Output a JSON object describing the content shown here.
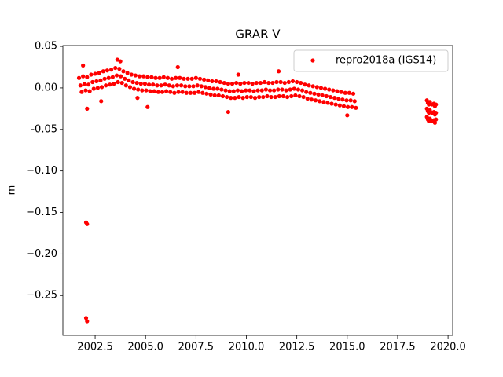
{
  "chart_data": {
    "type": "scatter",
    "title": "GRAR V",
    "ylabel": "m",
    "xlim": [
      2000.9,
      2020.23
    ],
    "ylim": [
      -0.298,
      0.051
    ],
    "xticks": [
      2002.5,
      {
        "value": 2005.0,
        "label": "2005.0"
      },
      2007.5,
      {
        "value": 2010.0,
        "label": "2010.0"
      },
      2012.5,
      {
        "value": 2015.0,
        "label": "2015.0"
      },
      2017.5,
      {
        "value": 2020.0,
        "label": "2020.0"
      }
    ],
    "yticks": [
      0.05,
      {
        "value": 0.0,
        "label": "0.00"
      },
      -0.05,
      {
        "value": -0.1,
        "label": "−0.10"
      },
      {
        "value": -0.15,
        "label": "−0.15"
      },
      {
        "value": -0.2,
        "label": "−0.20"
      },
      {
        "value": -0.25,
        "label": "−0.25"
      }
    ],
    "legend": "upper right",
    "series": [
      {
        "name": "repro2018a (IGS14)",
        "color": "#ff0000",
        "x": [
          2001.7,
          2001.77,
          2001.83,
          2001.9,
          2001.97,
          2002.03,
          2002.1,
          2002.17,
          2002.23,
          2002.3,
          2002.37,
          2002.43,
          2002.5,
          2002.57,
          2002.63,
          2002.7,
          2002.77,
          2002.83,
          2002.9,
          2002.97,
          2003.03,
          2003.1,
          2003.17,
          2003.23,
          2003.3,
          2003.37,
          2003.43,
          2003.5,
          2003.57,
          2003.63,
          2003.7,
          2003.77,
          2003.83,
          2003.9,
          2003.97,
          2004.03,
          2004.1,
          2004.17,
          2004.23,
          2004.3,
          2004.37,
          2004.43,
          2004.5,
          2004.57,
          2004.63,
          2004.7,
          2004.77,
          2004.83,
          2004.9,
          2004.97,
          2005.03,
          2005.1,
          2005.17,
          2005.23,
          2005.3,
          2005.37,
          2005.43,
          2005.5,
          2005.57,
          2005.63,
          2005.7,
          2005.77,
          2005.83,
          2005.9,
          2005.97,
          2006.03,
          2006.1,
          2006.17,
          2006.23,
          2006.3,
          2006.37,
          2006.43,
          2006.5,
          2006.57,
          2006.63,
          2006.7,
          2006.77,
          2006.83,
          2006.9,
          2006.97,
          2007.03,
          2007.1,
          2007.17,
          2007.23,
          2007.3,
          2007.37,
          2007.43,
          2007.5,
          2007.57,
          2007.63,
          2007.7,
          2007.77,
          2007.83,
          2007.9,
          2007.97,
          2008.03,
          2008.1,
          2008.17,
          2008.23,
          2008.3,
          2008.37,
          2008.43,
          2008.5,
          2008.57,
          2008.63,
          2008.7,
          2008.77,
          2008.83,
          2008.9,
          2008.97,
          2009.03,
          2009.1,
          2009.17,
          2009.23,
          2009.3,
          2009.37,
          2009.43,
          2009.5,
          2009.57,
          2009.63,
          2009.7,
          2009.77,
          2009.83,
          2009.9,
          2009.97,
          2010.03,
          2010.1,
          2010.17,
          2010.23,
          2010.3,
          2010.37,
          2010.43,
          2010.5,
          2010.57,
          2010.63,
          2010.7,
          2010.77,
          2010.83,
          2010.9,
          2010.97,
          2011.03,
          2011.1,
          2011.17,
          2011.23,
          2011.3,
          2011.37,
          2011.43,
          2011.5,
          2011.57,
          2011.63,
          2011.7,
          2011.77,
          2011.83,
          2011.9,
          2011.97,
          2012.03,
          2012.1,
          2012.17,
          2012.23,
          2012.3,
          2012.37,
          2012.43,
          2012.5,
          2012.57,
          2012.63,
          2012.7,
          2012.77,
          2012.83,
          2012.9,
          2012.97,
          2013.03,
          2013.1,
          2013.17,
          2013.23,
          2013.3,
          2013.37,
          2013.43,
          2013.5,
          2013.57,
          2013.63,
          2013.7,
          2013.77,
          2013.83,
          2013.9,
          2013.97,
          2014.03,
          2014.1,
          2014.17,
          2014.23,
          2014.3,
          2014.37,
          2014.43,
          2014.5,
          2014.57,
          2014.63,
          2014.7,
          2014.77,
          2014.83,
          2014.9,
          2014.97,
          2015.03,
          2015.1,
          2015.17,
          2015.23,
          2015.3,
          2015.37,
          2015.43,
          2002.05,
          2002.1,
          2002.05,
          2002.1,
          2002.1,
          2002.8,
          2001.9,
          2003.6,
          2003.75,
          2005.1,
          2006.6,
          2009.1,
          2009.6,
          2011.6,
          2015.0,
          2004.6,
          2018.95,
          2018.95,
          2018.95,
          2019.0,
          2019.0,
          2019.0,
          2019.05,
          2019.05,
          2019.05,
          2019.1,
          2019.1,
          2019.1,
          2019.2,
          2019.2,
          2019.2,
          2019.3,
          2019.3,
          2019.3,
          2019.35,
          2019.35,
          2019.35,
          2019.4,
          2019.4,
          2019.4
        ],
        "values": [
          0.012,
          0.003,
          -0.005,
          0.014,
          0.005,
          -0.003,
          0.013,
          0.004,
          -0.004,
          0.016,
          0.007,
          -0.001,
          0.017,
          0.008,
          0.0,
          0.018,
          0.009,
          0.001,
          0.02,
          0.011,
          0.003,
          0.021,
          0.012,
          0.004,
          0.022,
          0.013,
          0.005,
          0.024,
          0.015,
          0.007,
          0.023,
          0.014,
          0.006,
          0.02,
          0.011,
          0.003,
          0.018,
          0.009,
          0.001,
          0.016,
          0.007,
          -0.001,
          0.015,
          0.006,
          -0.002,
          0.014,
          0.005,
          -0.003,
          0.014,
          0.005,
          -0.003,
          0.013,
          0.004,
          -0.004,
          0.013,
          0.004,
          -0.004,
          0.012,
          0.003,
          -0.005,
          0.012,
          0.003,
          -0.005,
          0.013,
          0.004,
          -0.004,
          0.012,
          0.003,
          -0.005,
          0.011,
          0.002,
          -0.006,
          0.012,
          0.003,
          -0.005,
          0.012,
          0.003,
          -0.005,
          0.011,
          0.002,
          -0.006,
          0.011,
          0.002,
          -0.006,
          0.011,
          0.002,
          -0.006,
          0.012,
          0.003,
          -0.005,
          0.011,
          0.002,
          -0.006,
          0.01,
          0.001,
          -0.007,
          0.009,
          0.0,
          -0.008,
          0.008,
          -0.001,
          -0.009,
          0.008,
          -0.001,
          -0.009,
          0.007,
          -0.002,
          -0.01,
          0.006,
          -0.003,
          -0.011,
          0.005,
          -0.004,
          -0.012,
          0.005,
          -0.004,
          -0.012,
          0.006,
          -0.003,
          -0.011,
          0.005,
          -0.004,
          -0.012,
          0.006,
          -0.003,
          -0.011,
          0.006,
          -0.003,
          -0.011,
          0.005,
          -0.004,
          -0.012,
          0.006,
          -0.003,
          -0.011,
          0.006,
          -0.003,
          -0.011,
          0.007,
          -0.002,
          -0.01,
          0.006,
          -0.003,
          -0.011,
          0.006,
          -0.003,
          -0.011,
          0.007,
          -0.002,
          -0.01,
          0.007,
          -0.002,
          -0.01,
          0.006,
          -0.003,
          -0.011,
          0.007,
          -0.002,
          -0.01,
          0.008,
          -0.001,
          -0.009,
          0.007,
          -0.002,
          -0.01,
          0.006,
          -0.003,
          -0.011,
          0.004,
          -0.005,
          -0.013,
          0.003,
          -0.006,
          -0.014,
          0.002,
          -0.007,
          -0.015,
          0.001,
          -0.008,
          -0.016,
          0.0,
          -0.009,
          -0.017,
          -0.001,
          -0.01,
          -0.018,
          -0.002,
          -0.011,
          -0.019,
          -0.003,
          -0.012,
          -0.02,
          -0.004,
          -0.013,
          -0.021,
          -0.005,
          -0.014,
          -0.022,
          -0.006,
          -0.015,
          -0.023,
          -0.006,
          -0.015,
          -0.023,
          -0.007,
          -0.016,
          -0.024,
          -0.162,
          -0.164,
          -0.277,
          -0.281,
          -0.025,
          -0.016,
          0.027,
          0.034,
          0.032,
          -0.023,
          0.025,
          -0.029,
          0.016,
          0.02,
          -0.033,
          -0.012,
          -0.015,
          -0.025,
          -0.035,
          -0.018,
          -0.028,
          -0.038,
          -0.02,
          -0.03,
          -0.04,
          -0.017,
          -0.027,
          -0.037,
          -0.02,
          -0.03,
          -0.04,
          -0.019,
          -0.029,
          -0.039,
          -0.022,
          -0.032,
          -0.042,
          -0.02,
          -0.03,
          -0.038
        ]
      }
    ]
  }
}
